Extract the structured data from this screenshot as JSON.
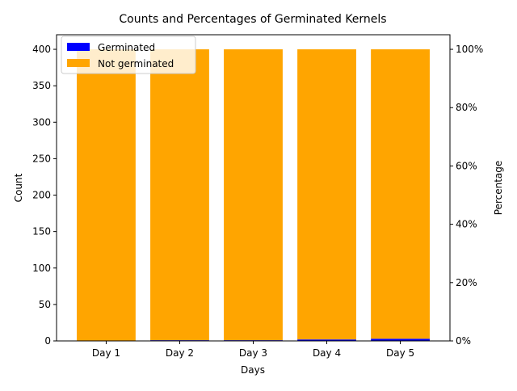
{
  "chart_data": {
    "type": "bar",
    "stacked": true,
    "title": "Counts and Percentages of Germinated Kernels",
    "xlabel": "Days",
    "ylabel": "Count",
    "ylabel_right": "Percentage",
    "categories": [
      "Day 1",
      "Day 2",
      "Day 3",
      "Day 4",
      "Day 5"
    ],
    "series": [
      {
        "name": "Germinated",
        "color": "#0000ff",
        "values": [
          0,
          1,
          1,
          2,
          3
        ]
      },
      {
        "name": "Not germinated",
        "color": "#ffa500",
        "values": [
          400,
          399,
          399,
          398,
          397
        ]
      }
    ],
    "ylim": [
      0,
      420
    ],
    "yticks": [
      0,
      50,
      100,
      150,
      200,
      250,
      300,
      350,
      400
    ],
    "y2lim": [
      0,
      1.05
    ],
    "y2ticks": [
      "0%",
      "20%",
      "40%",
      "60%",
      "80%",
      "100%"
    ],
    "y2tick_values": [
      0,
      0.2,
      0.4,
      0.6,
      0.8,
      1.0
    ],
    "legend_position": "top-left",
    "grid": false
  }
}
